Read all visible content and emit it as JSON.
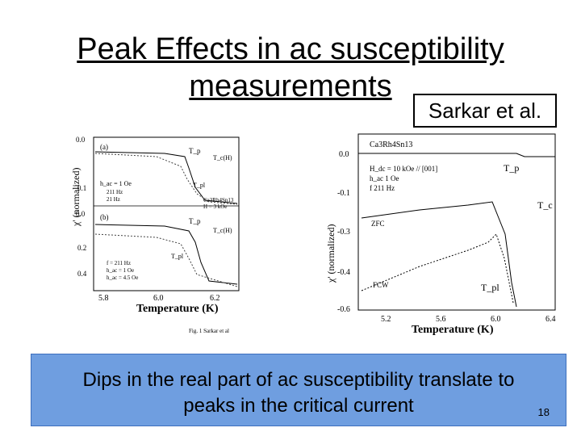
{
  "slide": {
    "title_line1": "Peak Effects in ac susceptibility",
    "title_line2": "measurements",
    "author": "Sarkar et al.",
    "caption_line1": "Dips in the real part of ac susceptibility translate to",
    "caption_line2": "peaks in the critical current",
    "page_number": "18"
  },
  "left_figure": {
    "ylabel": "χ' (normalized)",
    "xlabel": "Temperature (K)",
    "x_ticks": [
      "5.8",
      "6.0",
      "6.2"
    ],
    "y_ticks_top": [
      "0.0",
      "0.1",
      "0.0"
    ],
    "y_ticks_bottom": [
      "0.2",
      "0.4"
    ],
    "panel_a": "(a)",
    "panel_b": "(b)",
    "panel_a_legend": [
      "h_ac = 1 Oe",
      "211 Hz",
      "21 Hz"
    ],
    "panel_b_legend": [
      "f = 211 Hz",
      "h_ac = 1 Oe",
      "h_ac = 4.5 Oe"
    ],
    "labels": [
      "T_p",
      "T_c(H)",
      "T_pl",
      "Ca3Rh4Sn13",
      "H = 3 kOe",
      "T_p",
      "T_c(H)",
      "T_pl"
    ],
    "footer": "Fig. 1 Sarkar et al"
  },
  "right_figure": {
    "ylabel": "χ' (normalized)",
    "xlabel": "Temperature (K)",
    "x_ticks": [
      "5.2",
      "5.6",
      "6.0",
      "6.4"
    ],
    "y_ticks": [
      "0.0",
      "-0.1",
      "-0.3",
      "-0.4",
      "-0.6"
    ],
    "material": "Ca3Rh4Sn13",
    "field": "H_dc = 10 kOe // [001]",
    "h_ac": "h_ac  1 Oe",
    "freq": "f  211 Hz",
    "tp": "T_p",
    "tc": "T_c",
    "tpl": "T_pl",
    "zfc": "ZFC",
    "fcw": "FCW"
  }
}
